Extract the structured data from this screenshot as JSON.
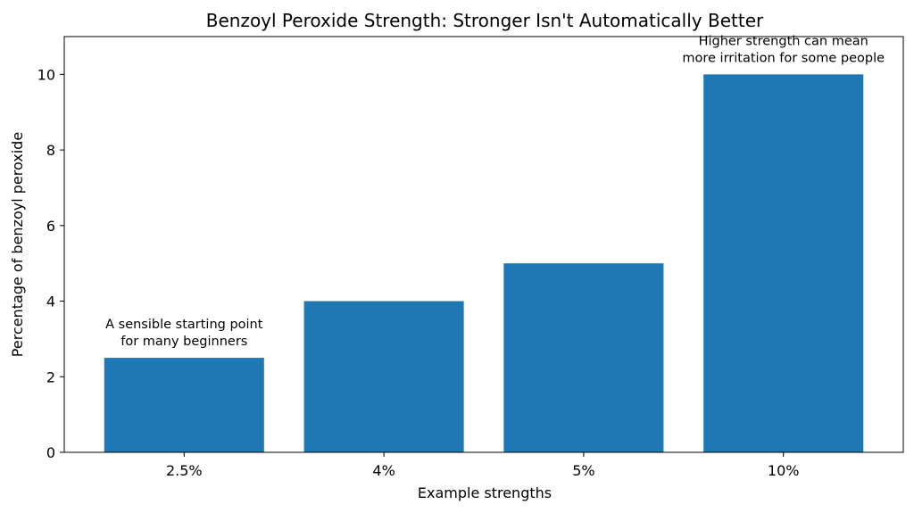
{
  "chart_data": {
    "type": "bar",
    "title": "Benzoyl Peroxide Strength: Stronger Isn't Automatically Better",
    "xlabel": "Example strengths",
    "ylabel": "Percentage of benzoyl peroxide",
    "categories": [
      "2.5%",
      "4%",
      "5%",
      "10%"
    ],
    "values": [
      2.5,
      4,
      5,
      10
    ],
    "ylim": [
      0,
      11
    ],
    "yticks": [
      0,
      2,
      4,
      6,
      8,
      10
    ],
    "grid": false,
    "bar_color": "#1f77b4",
    "annotations": [
      {
        "category": "2.5%",
        "lines": [
          "A sensible starting point",
          "for many beginners"
        ]
      },
      {
        "category": "10%",
        "lines": [
          "Higher strength can mean",
          "more irritation for some people"
        ]
      }
    ]
  }
}
